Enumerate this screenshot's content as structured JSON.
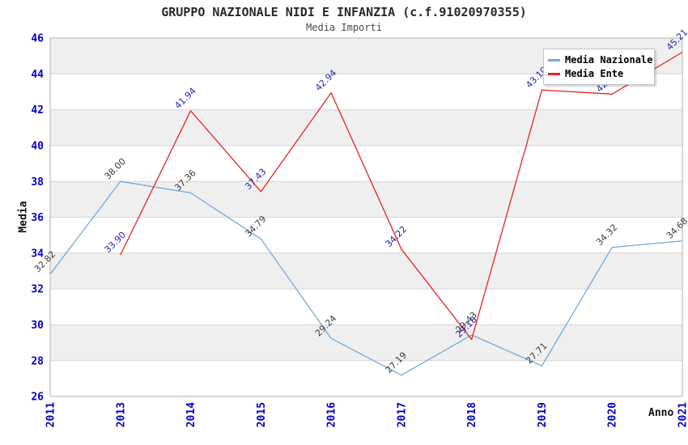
{
  "title": "GRUPPO NAZIONALE NIDI E INFANZIA (c.f.91020970355)",
  "subtitle": "Media Importi",
  "axes": {
    "y_label": "Media",
    "x_label": "Anno",
    "y_ticks": [
      46,
      44,
      42,
      40,
      38,
      36,
      34,
      32,
      30,
      28,
      26
    ]
  },
  "legend": {
    "items": [
      {
        "label": "Media Nazionale",
        "color": "#74a9dc"
      },
      {
        "label": "Media Ente",
        "color": "#e82222"
      }
    ]
  },
  "colors": {
    "tick_label": "#0000cc",
    "band": "#efefef",
    "grid": "#d6d6d6",
    "plot_border": "#b0b0b0"
  },
  "chart_data": {
    "type": "line",
    "title": "GRUPPO NAZIONALE NIDI E INFANZIA (c.f.91020970355)",
    "subtitle": "Media Importi",
    "xlabel": "Anno",
    "ylabel": "Media",
    "categories": [
      "2011",
      "2013",
      "2014",
      "2015",
      "2016",
      "2017",
      "2018",
      "2019",
      "2020",
      "2021"
    ],
    "series": [
      {
        "name": "Media Nazionale",
        "color": "#74a9dc",
        "label_color": "#3d3d3d",
        "values": [
          32.82,
          38.0,
          37.36,
          34.79,
          29.24,
          27.19,
          29.43,
          27.71,
          34.32,
          34.68
        ]
      },
      {
        "name": "Media Ente",
        "color": "#e82222",
        "label_color": "#2525b2",
        "values": [
          null,
          33.9,
          41.94,
          37.43,
          42.94,
          34.22,
          29.18,
          43.1,
          42.87,
          45.21
        ]
      }
    ],
    "ylim": [
      26,
      46
    ],
    "y_tick_step": 2,
    "grid": true,
    "band_stripes": true,
    "legend_position": "top-right",
    "point_label_format": "2-decimals",
    "point_label_rotation": -45
  }
}
